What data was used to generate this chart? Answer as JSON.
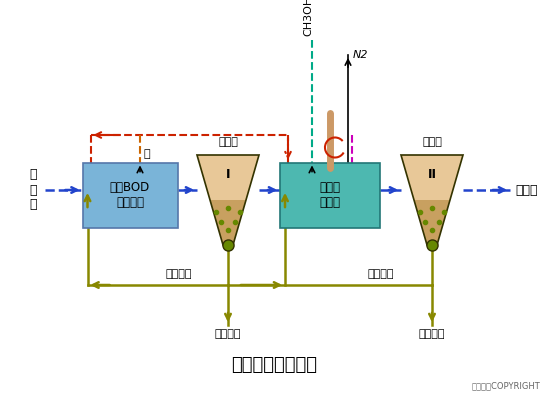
{
  "title": "两级生物脱氮工艺",
  "copyright": "东方仿真COPYRIGHT",
  "bg_color": "#ffffff",
  "title_fontsize": 13,
  "box1_color": "#7ab4d8",
  "box1_label": "去除BOD\n硝化氧化",
  "box2_color": "#4db8b0",
  "box2_label": "反硝化\n反应器",
  "settler1_label": "沉淀池",
  "settler2_label": "沉淀池",
  "settler1_roman": "I",
  "settler2_roman": "II",
  "label_yuanfeishui": "原\n废\n水",
  "label_chulishui": "处理水",
  "label_jian": "碱",
  "label_ch3oh": "CH3OH",
  "label_n2": "N2",
  "label_wurni_huiliu1": "污泥回流",
  "label_wurni_huiliu2": "污泥回流",
  "label_shengyu_wuni1": "剩余污泥",
  "label_shengyu_wuni2": "剩余污泥",
  "main_flow_color": "#2244cc",
  "sludge_color": "#888800",
  "recycle_color": "#cc2200",
  "alkali_color": "#cc6600",
  "ch3oh_color": "#00aa88",
  "magenta_color": "#cc00bb",
  "settler_top_color": "#e8c898",
  "settler_bot_color": "#c8a060",
  "settler_edge_color": "#333300",
  "dot_color": "#668800"
}
